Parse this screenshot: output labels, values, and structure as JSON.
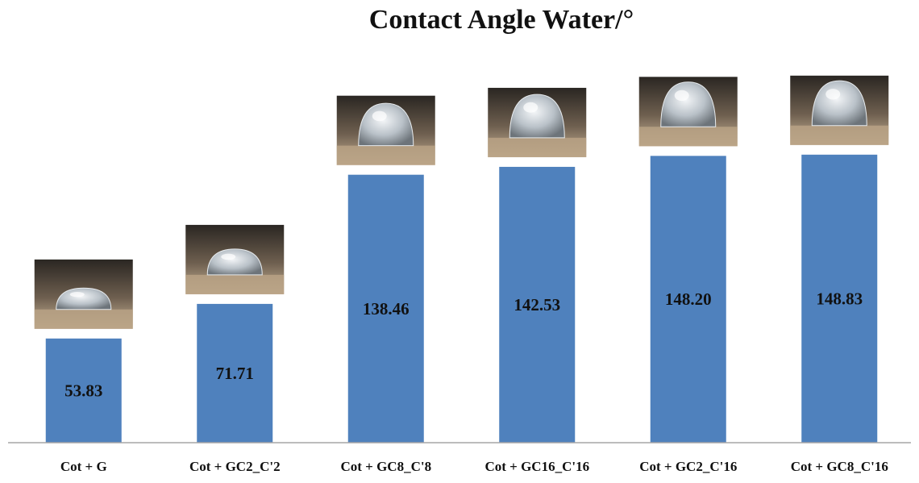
{
  "chart_data": {
    "type": "bar",
    "title": "Contact Angle Water/°",
    "xlabel": "",
    "ylabel": "",
    "categories": [
      "Cot + G",
      "Cot + GC2_C'2",
      "Cot + GC8_C'8",
      "Cot + GC16_C'16",
      "Cot + GC2_C'16",
      "Cot + GC8_C'16"
    ],
    "values": [
      53.83,
      71.71,
      138.46,
      142.53,
      148.2,
      148.83
    ],
    "data_labels": [
      "53.83",
      "71.71",
      "138.46",
      "142.53",
      "148.20",
      "148.83"
    ],
    "ylim": [
      0,
      180
    ],
    "grid": false,
    "legend": "none",
    "colors": {
      "bar": "#4f81bd",
      "axis": "#a6a6a6",
      "text": "#111111"
    },
    "images": [
      "water-droplet-photo",
      "water-droplet-photo",
      "water-droplet-photo",
      "water-droplet-photo",
      "water-droplet-photo",
      "water-droplet-photo"
    ]
  }
}
